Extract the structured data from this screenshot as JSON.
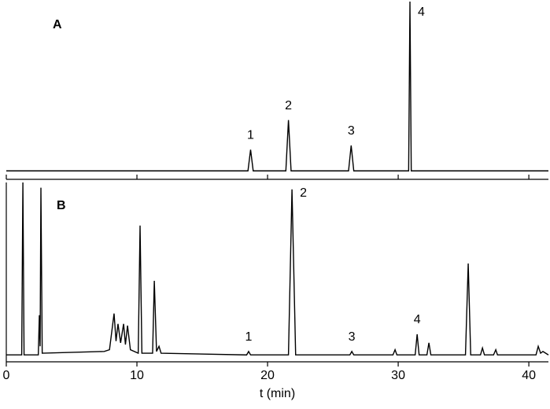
{
  "chart_data": [
    {
      "type": "line",
      "panel_label": "A",
      "color": "#000000",
      "xlim": [
        0,
        41.5
      ],
      "ylim": [
        -5,
        100
      ],
      "xticks": [
        0,
        10,
        20,
        30,
        40
      ],
      "x": [
        0,
        18.5,
        18.7,
        18.9,
        21.4,
        21.6,
        21.8,
        26.2,
        26.4,
        26.6,
        30.8,
        30.9,
        31.0,
        41.5
      ],
      "values": [
        0,
        0,
        12.5,
        0,
        0,
        30,
        0,
        0,
        15,
        0,
        0,
        100,
        0,
        0
      ],
      "peak_labels": [
        {
          "label": "1",
          "x": 18.7
        },
        {
          "label": "2",
          "x": 21.6
        },
        {
          "label": "3",
          "x": 26.4
        },
        {
          "label": "4",
          "x": 30.9
        }
      ]
    },
    {
      "type": "line",
      "panel_label": "B",
      "color": "#000000",
      "xlabel": "t (min)",
      "xlim": [
        0,
        41.5
      ],
      "ylim": [
        -4,
        100
      ],
      "xticks": [
        0,
        10,
        20,
        30,
        40
      ],
      "x": [
        0,
        1.18,
        1.27,
        1.36,
        2.45,
        2.53,
        2.59,
        2.65,
        2.75,
        7.5,
        7.9,
        8.25,
        8.4,
        8.55,
        8.75,
        8.98,
        9.12,
        9.28,
        9.5,
        10.1,
        10.24,
        10.38,
        11.2,
        11.33,
        11.5,
        11.69,
        11.85,
        18.4,
        18.55,
        18.7,
        21.6,
        21.87,
        22.15,
        26.3,
        26.45,
        26.6,
        29.6,
        29.76,
        29.9,
        31.3,
        31.45,
        31.6,
        32.2,
        32.35,
        32.5,
        35.15,
        35.36,
        35.55,
        36.3,
        36.45,
        36.6,
        37.3,
        37.47,
        37.6,
        40.55,
        40.72,
        40.9,
        41.08,
        41.5
      ],
      "values": [
        0,
        0,
        100,
        0,
        0,
        23,
        5,
        97,
        1,
        2,
        3,
        24,
        8,
        18,
        7,
        18,
        6,
        17,
        3,
        1,
        75,
        1,
        1,
        43,
        2,
        5,
        1,
        0,
        2,
        0,
        0,
        96,
        0,
        0,
        2,
        0,
        0,
        3,
        0,
        0,
        12,
        0,
        0,
        7,
        0,
        0,
        53,
        0,
        0,
        4,
        0,
        0,
        3,
        0,
        0,
        5,
        1,
        2,
        0
      ],
      "peak_labels": [
        {
          "label": "1",
          "x": 18.55
        },
        {
          "label": "2",
          "x": 21.87
        },
        {
          "label": "3",
          "x": 26.45
        },
        {
          "label": "4",
          "x": 31.45
        }
      ]
    }
  ]
}
